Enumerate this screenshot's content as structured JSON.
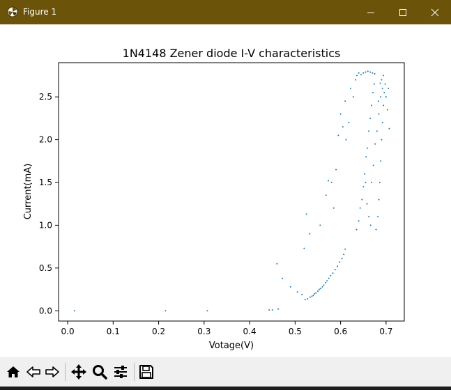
{
  "window": {
    "title": "Figure 1",
    "accent": "#6b5309",
    "controls": {
      "minimize": "minimize-icon",
      "maximize": "maximize-icon",
      "close": "close-icon"
    }
  },
  "toolbar": {
    "tools": [
      {
        "name": "home-icon"
      },
      {
        "name": "back-arrow-icon"
      },
      {
        "name": "forward-arrow-icon"
      },
      {
        "name": "pan-icon"
      },
      {
        "name": "zoom-icon"
      },
      {
        "name": "configure-subplots-icon"
      },
      {
        "name": "save-icon"
      }
    ]
  },
  "chart_data": {
    "type": "scatter",
    "title": "1N4148 Zener diode I-V characteristics",
    "xlabel": "Votage(V)",
    "ylabel": "Current(mA)",
    "xlim": [
      -0.02,
      0.74
    ],
    "ylim": [
      -0.12,
      2.9
    ],
    "xticks": [
      "0.0",
      "0.1",
      "0.2",
      "0.3",
      "0.4",
      "0.5",
      "0.6",
      "0.7"
    ],
    "yticks": [
      "0.0",
      "0.5",
      "1.0",
      "1.5",
      "2.0",
      "2.5"
    ],
    "grid": false,
    "marker_color": "#1f77b4",
    "series": [
      {
        "points": [
          [
            0.015,
            0.0
          ],
          [
            0.215,
            0.0
          ],
          [
            0.307,
            0.0
          ],
          [
            0.443,
            0.01
          ],
          [
            0.45,
            0.01
          ],
          [
            0.463,
            0.02
          ],
          [
            0.46,
            0.55
          ],
          [
            0.472,
            0.38
          ],
          [
            0.49,
            0.28
          ],
          [
            0.505,
            0.22
          ],
          [
            0.515,
            0.19
          ],
          [
            0.522,
            0.13
          ],
          [
            0.527,
            0.14
          ],
          [
            0.533,
            0.16
          ],
          [
            0.537,
            0.17
          ],
          [
            0.54,
            0.18
          ],
          [
            0.543,
            0.2
          ],
          [
            0.546,
            0.21
          ],
          [
            0.55,
            0.23
          ],
          [
            0.553,
            0.25
          ],
          [
            0.556,
            0.26
          ],
          [
            0.56,
            0.28
          ],
          [
            0.563,
            0.3
          ],
          [
            0.567,
            0.33
          ],
          [
            0.57,
            0.35
          ],
          [
            0.574,
            0.38
          ],
          [
            0.578,
            0.41
          ],
          [
            0.583,
            0.44
          ],
          [
            0.588,
            0.48
          ],
          [
            0.593,
            0.52
          ],
          [
            0.598,
            0.57
          ],
          [
            0.603,
            0.61
          ],
          [
            0.607,
            0.66
          ],
          [
            0.61,
            0.72
          ],
          [
            0.52,
            0.73
          ],
          [
            0.525,
            1.13
          ],
          [
            0.532,
            0.9
          ],
          [
            0.555,
            1.0
          ],
          [
            0.568,
            1.35
          ],
          [
            0.573,
            1.52
          ],
          [
            0.58,
            1.5
          ],
          [
            0.585,
            1.2
          ],
          [
            0.59,
            1.65
          ],
          [
            0.595,
            2.05
          ],
          [
            0.6,
            2.3
          ],
          [
            0.605,
            2.15
          ],
          [
            0.61,
            2.45
          ],
          [
            0.612,
            2.0
          ],
          [
            0.618,
            2.2
          ],
          [
            0.622,
            2.6
          ],
          [
            0.628,
            2.5
          ],
          [
            0.633,
            2.7
          ],
          [
            0.636,
            2.75
          ],
          [
            0.64,
            2.78
          ],
          [
            0.645,
            2.76
          ],
          [
            0.65,
            2.78
          ],
          [
            0.655,
            2.79
          ],
          [
            0.66,
            2.8
          ],
          [
            0.665,
            2.79
          ],
          [
            0.67,
            2.78
          ],
          [
            0.675,
            2.77
          ],
          [
            0.635,
            0.95
          ],
          [
            0.64,
            1.05
          ],
          [
            0.643,
            1.2
          ],
          [
            0.647,
            1.3
          ],
          [
            0.65,
            1.45
          ],
          [
            0.653,
            1.6
          ],
          [
            0.656,
            1.8
          ],
          [
            0.659,
            1.9
          ],
          [
            0.662,
            2.1
          ],
          [
            0.665,
            2.25
          ],
          [
            0.668,
            2.4
          ],
          [
            0.671,
            2.55
          ],
          [
            0.674,
            2.65
          ],
          [
            0.678,
            0.95
          ],
          [
            0.682,
            1.1
          ],
          [
            0.684,
            1.3
          ],
          [
            0.686,
            1.5
          ],
          [
            0.688,
            1.75
          ],
          [
            0.69,
            2.0
          ],
          [
            0.692,
            2.2
          ],
          [
            0.694,
            2.4
          ],
          [
            0.696,
            2.55
          ],
          [
            0.698,
            2.65
          ],
          [
            0.7,
            2.5
          ],
          [
            0.703,
            2.35
          ],
          [
            0.705,
            2.6
          ],
          [
            0.707,
            2.13
          ],
          [
            0.655,
            1.5
          ],
          [
            0.658,
            1.25
          ],
          [
            0.662,
            1.1
          ],
          [
            0.666,
            1.0
          ],
          [
            0.668,
            1.5
          ],
          [
            0.672,
            1.7
          ],
          [
            0.676,
            1.95
          ],
          [
            0.68,
            2.1
          ],
          [
            0.684,
            2.3
          ],
          [
            0.688,
            2.5
          ],
          [
            0.69,
            2.7
          ],
          [
            0.694,
            2.75
          ],
          [
            0.692,
            2.6
          ],
          [
            0.687,
            2.66
          ],
          [
            0.683,
            2.45
          ]
        ]
      }
    ]
  }
}
